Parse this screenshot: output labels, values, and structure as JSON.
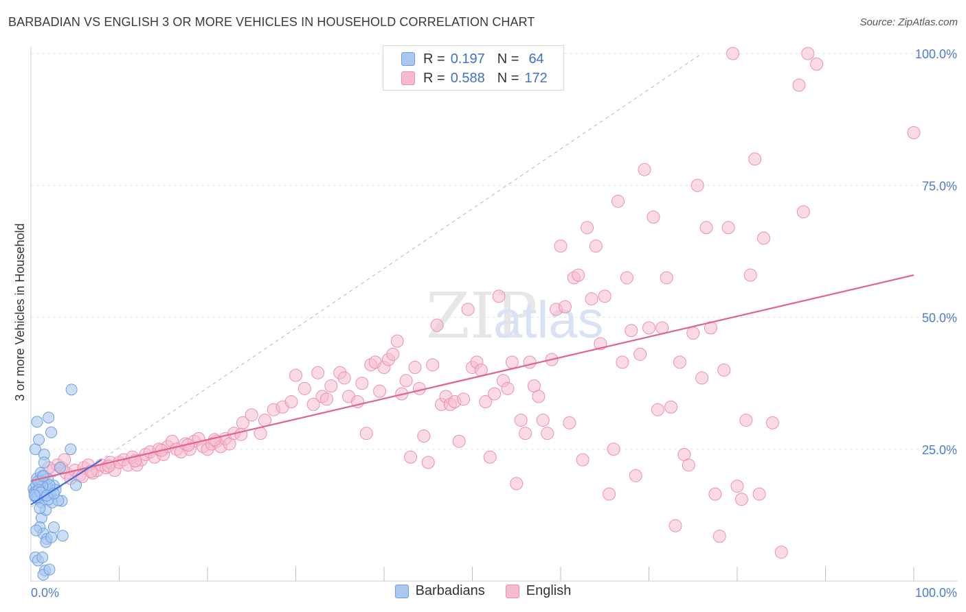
{
  "title": "BARBADIAN VS ENGLISH 3 OR MORE VEHICLES IN HOUSEHOLD CORRELATION CHART",
  "source": "Source: ZipAtlas.com",
  "watermark": {
    "zip": "ZIP",
    "atlas": "atlas"
  },
  "legend": {
    "rows": [
      {
        "r_label": "R =",
        "r_value": "0.197",
        "n_label": "N =",
        "n_value": "64"
      },
      {
        "r_label": "R =",
        "r_value": "0.588",
        "n_label": "N =",
        "n_value": "172"
      }
    ]
  },
  "bottom_legend": [
    "Barbadians",
    "English"
  ],
  "colors": {
    "barbadian_fill": "#a9c8f0",
    "barbadian_stroke": "#6f9fe0",
    "barbadian_line": "#3d6ed8",
    "english_fill": "#f6bccd",
    "english_stroke": "#ee8fad",
    "english_line": "#e0638b",
    "tick_text": "#4a7bd0",
    "grid": "#e3e3e3"
  },
  "chart_data": {
    "type": "scatter",
    "title": "BARBADIAN VS ENGLISH 3 OR MORE VEHICLES IN HOUSEHOLD CORRELATION CHART",
    "xlabel": "",
    "ylabel": "3 or more Vehicles in Household",
    "xlim": [
      0,
      100
    ],
    "ylim": [
      0,
      100
    ],
    "x_tick_labels": [
      "0.0%",
      "100.0%"
    ],
    "y_ticks": [
      25,
      50,
      75,
      100
    ],
    "y_tick_labels": [
      "25.0%",
      "50.0%",
      "75.0%",
      "100.0%"
    ],
    "x_minor_ticks": [
      10,
      20,
      30,
      40,
      50,
      60,
      70,
      80,
      90,
      100
    ],
    "diagonal_reference": [
      [
        0,
        14
      ],
      [
        76,
        100
      ]
    ],
    "series": [
      {
        "name": "Barbadians",
        "R": 0.197,
        "N": 64,
        "trend": [
          [
            0,
            14.5
          ],
          [
            8,
            23
          ]
        ],
        "points": [
          [
            0.3,
            17.5
          ],
          [
            0.4,
            16.8
          ],
          [
            0.5,
            16.0
          ],
          [
            0.6,
            18.2
          ],
          [
            0.7,
            19.5
          ],
          [
            0.8,
            15.5
          ],
          [
            0.9,
            17.0
          ],
          [
            1.0,
            18.8
          ],
          [
            1.1,
            16.3
          ],
          [
            1.2,
            14.9
          ],
          [
            1.3,
            20.0
          ],
          [
            0.5,
            25.0
          ],
          [
            0.7,
            30.2
          ],
          [
            0.9,
            26.8
          ],
          [
            1.5,
            24.0
          ],
          [
            2.0,
            31.0
          ],
          [
            2.3,
            28.2
          ],
          [
            4.6,
            36.3
          ],
          [
            1.2,
            12.0
          ],
          [
            1.0,
            10.2
          ],
          [
            1.4,
            9.0
          ],
          [
            1.8,
            8.0
          ],
          [
            3.6,
            8.6
          ],
          [
            0.5,
            4.5
          ],
          [
            0.8,
            3.9
          ],
          [
            1.3,
            4.5
          ],
          [
            1.6,
            2.0
          ],
          [
            1.4,
            1.2
          ],
          [
            2.1,
            2.2
          ],
          [
            1.7,
            13.5
          ],
          [
            3.5,
            15.2
          ],
          [
            1.5,
            16.3
          ],
          [
            1.9,
            17.9
          ],
          [
            2.2,
            16.5
          ],
          [
            2.6,
            18.1
          ],
          [
            2.8,
            17.3
          ],
          [
            3.3,
            21.5
          ],
          [
            4.5,
            25.0
          ],
          [
            1.1,
            20.5
          ],
          [
            1.2,
            19.0
          ],
          [
            0.6,
            17.0
          ],
          [
            0.7,
            15.9
          ],
          [
            1.6,
            17.0
          ],
          [
            1.7,
            17.8
          ],
          [
            1.9,
            19.4
          ],
          [
            2.1,
            18.2
          ],
          [
            1.3,
            18.0
          ],
          [
            0.8,
            18.9
          ],
          [
            2.4,
            14.9
          ],
          [
            1.0,
            13.8
          ],
          [
            1.4,
            19.9
          ],
          [
            0.9,
            17.3
          ],
          [
            1.1,
            16.8
          ],
          [
            2.0,
            15.5
          ],
          [
            1.5,
            22.5
          ],
          [
            3.1,
            15.3
          ],
          [
            1.7,
            7.4
          ],
          [
            2.3,
            8.3
          ],
          [
            0.6,
            9.6
          ],
          [
            2.6,
            10.2
          ],
          [
            5.1,
            18.2
          ],
          [
            1.8,
            16.2
          ],
          [
            2.6,
            16.6
          ],
          [
            0.4,
            16.3
          ]
        ]
      },
      {
        "name": "English",
        "R": 0.588,
        "N": 172,
        "trend": [
          [
            0,
            19
          ],
          [
            100,
            58
          ]
        ],
        "points": [
          [
            1.5,
            19.8
          ],
          [
            2.5,
            21.0
          ],
          [
            3.0,
            22.0
          ],
          [
            3.5,
            21.5
          ],
          [
            4.0,
            20.5
          ],
          [
            4.5,
            19.5
          ],
          [
            5.0,
            21.0
          ],
          [
            5.5,
            20.0
          ],
          [
            6.0,
            21.5
          ],
          [
            6.5,
            22.0
          ],
          [
            7.0,
            20.5
          ],
          [
            7.5,
            21.0
          ],
          [
            8.0,
            22.0
          ],
          [
            8.5,
            21.5
          ],
          [
            9.0,
            22.5
          ],
          [
            9.5,
            21.0
          ],
          [
            10.0,
            22.5
          ],
          [
            10.5,
            23.0
          ],
          [
            11.0,
            22.0
          ],
          [
            11.5,
            23.5
          ],
          [
            12.0,
            22.0
          ],
          [
            12.5,
            23.0
          ],
          [
            13.0,
            24.0
          ],
          [
            13.5,
            24.5
          ],
          [
            14.0,
            23.5
          ],
          [
            14.5,
            25.0
          ],
          [
            15.0,
            24.0
          ],
          [
            15.5,
            25.5
          ],
          [
            16.0,
            26.5
          ],
          [
            16.5,
            25.0
          ],
          [
            17.0,
            24.5
          ],
          [
            17.5,
            26.0
          ],
          [
            18.0,
            25.0
          ],
          [
            18.5,
            26.5
          ],
          [
            19.0,
            27.0
          ],
          [
            19.5,
            25.5
          ],
          [
            20.0,
            25.0
          ],
          [
            20.5,
            26.0
          ],
          [
            21.0,
            26.5
          ],
          [
            21.5,
            25.5
          ],
          [
            22.0,
            27.0
          ],
          [
            22.5,
            26.0
          ],
          [
            23.0,
            28.0
          ],
          [
            24.0,
            30.0
          ],
          [
            25.0,
            31.5
          ],
          [
            26.0,
            28.0
          ],
          [
            26.5,
            30.5
          ],
          [
            27.5,
            32.5
          ],
          [
            28.5,
            33.0
          ],
          [
            29.5,
            34.0
          ],
          [
            30.0,
            39.0
          ],
          [
            31.0,
            36.5
          ],
          [
            32.0,
            33.5
          ],
          [
            32.5,
            39.5
          ],
          [
            33.0,
            35.0
          ],
          [
            33.5,
            34.5
          ],
          [
            34.0,
            37.0
          ],
          [
            35.0,
            39.5
          ],
          [
            35.5,
            38.5
          ],
          [
            36.0,
            35.0
          ],
          [
            37.0,
            34.0
          ],
          [
            37.5,
            37.5
          ],
          [
            38.0,
            28.0
          ],
          [
            38.5,
            41.0
          ],
          [
            39.0,
            41.5
          ],
          [
            39.5,
            36.0
          ],
          [
            40.0,
            40.5
          ],
          [
            40.5,
            42.0
          ],
          [
            41.0,
            43.0
          ],
          [
            41.5,
            45.5
          ],
          [
            42.0,
            35.5
          ],
          [
            42.5,
            38.0
          ],
          [
            43.0,
            23.5
          ],
          [
            43.5,
            40.5
          ],
          [
            44.0,
            36.5
          ],
          [
            44.5,
            27.5
          ],
          [
            45.0,
            22.5
          ],
          [
            45.5,
            41.0
          ],
          [
            46.0,
            48.5
          ],
          [
            46.5,
            33.5
          ],
          [
            47.0,
            35.0
          ],
          [
            47.5,
            33.5
          ],
          [
            48.0,
            34.0
          ],
          [
            48.5,
            26.5
          ],
          [
            49.0,
            34.5
          ],
          [
            49.5,
            51.5
          ],
          [
            50.0,
            40.5
          ],
          [
            50.5,
            41.5
          ],
          [
            51.0,
            40.0
          ],
          [
            51.5,
            34.0
          ],
          [
            52.0,
            23.5
          ],
          [
            52.5,
            35.5
          ],
          [
            53.0,
            54.0
          ],
          [
            53.5,
            38.0
          ],
          [
            54.0,
            36.5
          ],
          [
            54.5,
            41.5
          ],
          [
            55.0,
            18.5
          ],
          [
            55.5,
            30.5
          ],
          [
            56.0,
            28.0
          ],
          [
            56.5,
            41.5
          ],
          [
            57.0,
            37.0
          ],
          [
            57.5,
            35.0
          ],
          [
            58.0,
            30.5
          ],
          [
            58.5,
            28.0
          ],
          [
            59.0,
            42.0
          ],
          [
            59.5,
            51.5
          ],
          [
            60.0,
            63.5
          ],
          [
            60.5,
            52.0
          ],
          [
            61.0,
            30.0
          ],
          [
            61.5,
            57.5
          ],
          [
            62.0,
            58.0
          ],
          [
            62.5,
            23.0
          ],
          [
            63.0,
            67.0
          ],
          [
            63.5,
            53.5
          ],
          [
            64.0,
            63.5
          ],
          [
            64.5,
            45.0
          ],
          [
            65.0,
            54.0
          ],
          [
            65.5,
            16.5
          ],
          [
            66.0,
            25.0
          ],
          [
            66.5,
            72.0
          ],
          [
            67.0,
            41.5
          ],
          [
            67.5,
            57.5
          ],
          [
            68.0,
            47.5
          ],
          [
            68.5,
            20.0
          ],
          [
            69.0,
            43.0
          ],
          [
            69.5,
            78.0
          ],
          [
            70.0,
            48.0
          ],
          [
            70.5,
            69.0
          ],
          [
            71.0,
            32.5
          ],
          [
            71.5,
            48.0
          ],
          [
            72.0,
            57.5
          ],
          [
            72.5,
            33.0
          ],
          [
            73.0,
            10.5
          ],
          [
            73.5,
            41.5
          ],
          [
            74.0,
            24.0
          ],
          [
            74.5,
            22.0
          ],
          [
            75.0,
            47.0
          ],
          [
            75.5,
            75.0
          ],
          [
            76.0,
            38.5
          ],
          [
            76.5,
            67.0
          ],
          [
            77.0,
            48.0
          ],
          [
            77.5,
            16.5
          ],
          [
            78.0,
            8.5
          ],
          [
            78.5,
            40.0
          ],
          [
            79.0,
            67.0
          ],
          [
            79.5,
            100.0
          ],
          [
            80.0,
            18.0
          ],
          [
            80.5,
            15.5
          ],
          [
            81.0,
            30.5
          ],
          [
            81.5,
            58.0
          ],
          [
            82.0,
            80.0
          ],
          [
            82.5,
            16.5
          ],
          [
            83.0,
            65.0
          ],
          [
            84.0,
            30.0
          ],
          [
            85.0,
            5.5
          ],
          [
            87.0,
            94.0
          ],
          [
            87.5,
            70.0
          ],
          [
            88.0,
            100.0
          ],
          [
            89.0,
            98.0
          ],
          [
            100.0,
            85.0
          ],
          [
            2.0,
            21.5
          ],
          [
            3.8,
            23.0
          ],
          [
            5.8,
            19.8
          ],
          [
            6.8,
            20.8
          ],
          [
            8.8,
            21.8
          ],
          [
            11.8,
            22.8
          ],
          [
            14.8,
            24.8
          ],
          [
            17.8,
            25.8
          ],
          [
            20.8,
            26.8
          ],
          [
            23.8,
            27.8
          ]
        ]
      }
    ]
  }
}
